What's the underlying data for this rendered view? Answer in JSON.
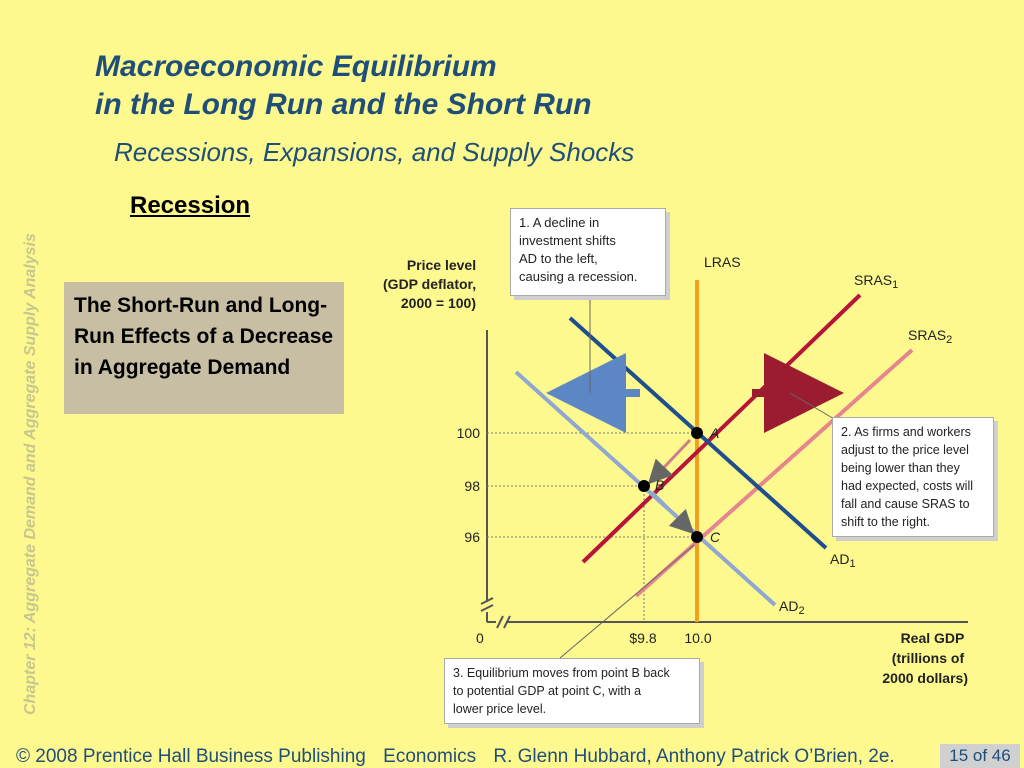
{
  "page": {
    "side_label": "Chapter 12:  Aggregate Demand and Aggregate Supply Analysis",
    "title_line1": "Macroeconomic Equilibrium",
    "title_line2": "in the Long Run and the Short Run",
    "subtitle": "Recessions, Expansions, and Supply Shocks",
    "section": "Recession",
    "caption": "The Short-Run and Long-Run Effects of a Decrease in Aggregate Demand",
    "footer": {
      "copyright": "© 2008 Prentice Hall Business Publishing",
      "book": "Economics",
      "authors": "R. Glenn Hubbard, Anthony Patrick O’Brien, 2e.",
      "page": "15 of 46"
    }
  },
  "chart_data": {
    "type": "line",
    "y_axis_label": [
      "Price level",
      "(GDP deflator,",
      "2000 = 100)"
    ],
    "x_axis_label": [
      "Real GDP",
      "(trillions of",
      "2000 dollars)"
    ],
    "origin_label": "0",
    "x_ticks": [
      "$9.8",
      "10.0"
    ],
    "y_ticks": [
      "100",
      "98",
      "96"
    ],
    "curves": [
      {
        "name": "LRAS",
        "color": "#f2a020"
      },
      {
        "name": "SRAS",
        "sub": "1",
        "color": "#b8143a"
      },
      {
        "name": "SRAS",
        "sub": "2",
        "color": "#e7858f"
      },
      {
        "name": "AD",
        "sub": "1",
        "color": "#1f4e8c"
      },
      {
        "name": "AD",
        "sub": "2",
        "color": "#8fa7d1"
      }
    ],
    "points": [
      {
        "label": "A",
        "x": 10.0,
        "y": 100
      },
      {
        "label": "B",
        "x": 9.8,
        "y": 98
      },
      {
        "label": "C",
        "x": 10.0,
        "y": 96
      }
    ],
    "notes": [
      {
        "lines": [
          "1.  A decline in",
          "investment shifts",
          "AD to the left,",
          "causing a recession."
        ]
      },
      {
        "lines": [
          "2. As firms and workers",
          "adjust to the price level",
          "being lower than they",
          "had expected, costs will",
          "fall and cause SRAS to",
          "shift to the right."
        ]
      },
      {
        "lines": [
          "3. Equilibrium moves from point B back",
          "to potential GDP at point C, with a",
          "lower price level."
        ]
      }
    ]
  }
}
